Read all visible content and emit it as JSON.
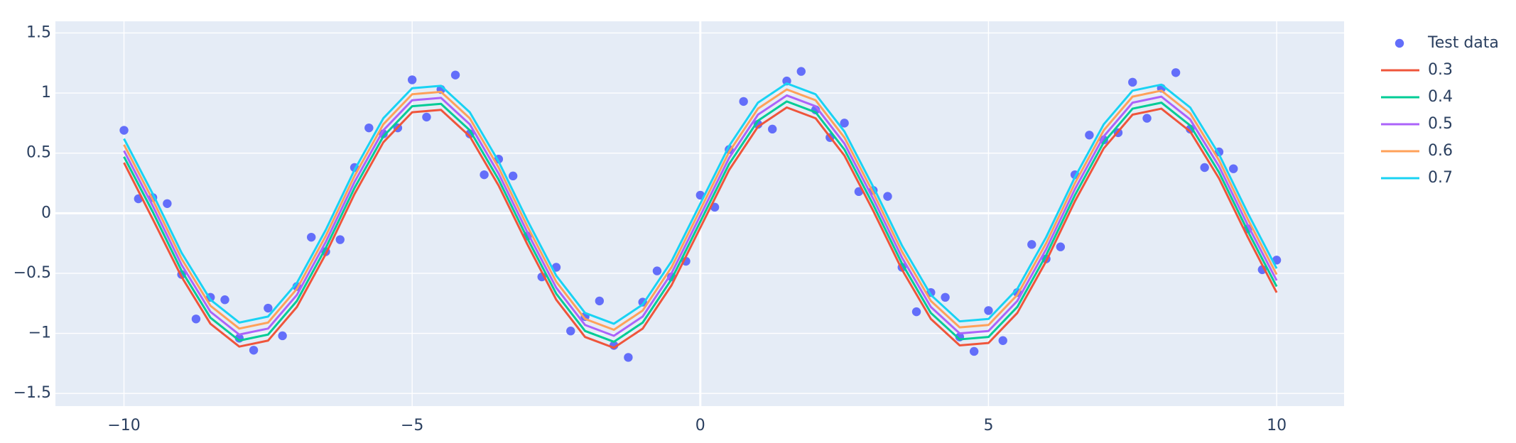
{
  "chart_data": {
    "type": "line",
    "xlim": [
      -11.19,
      11.17
    ],
    "ylim": [
      -1.605,
      1.597
    ],
    "xticks": [
      {
        "value": -10,
        "label": "−10"
      },
      {
        "value": -5,
        "label": "−5"
      },
      0,
      5,
      10
    ],
    "yticks": [
      1.5,
      1,
      0.5,
      0,
      {
        "value": -0.5,
        "label": "−0.5"
      },
      {
        "value": -1,
        "label": "−1"
      },
      {
        "value": -1.5,
        "label": "−1.5"
      }
    ],
    "grid": true,
    "legend": "right",
    "x": [
      -10,
      -9.5,
      -9,
      -8.5,
      -8,
      -7.5,
      -7,
      -6.5,
      -6,
      -5.5,
      -5,
      -4.5,
      -4,
      -3.5,
      -3,
      -2.5,
      -2,
      -1.5,
      -1,
      -0.5,
      0,
      0.5,
      1,
      1.5,
      2,
      2.5,
      3,
      3.5,
      4,
      4.5,
      5,
      5.5,
      6,
      6.5,
      7,
      7.5,
      8,
      8.5,
      9,
      9.5,
      10
    ],
    "series": [
      {
        "name": "Test data",
        "type": "scatter",
        "color": "#636efa",
        "x": [
          -10,
          -9.75,
          -9.5,
          -9.25,
          -9,
          -8.75,
          -8.5,
          -8.25,
          -8,
          -7.75,
          -7.5,
          -7.25,
          -7,
          -6.75,
          -6.5,
          -6.25,
          -6,
          -5.75,
          -5.5,
          -5.25,
          -5,
          -4.75,
          -4.5,
          -4.25,
          -4,
          -3.75,
          -3.5,
          -3.25,
          -3,
          -2.75,
          -2.5,
          -2.25,
          -2,
          -1.75,
          -1.5,
          -1.25,
          -1,
          -0.75,
          -0.5,
          -0.25,
          0,
          0.25,
          0.5,
          0.75,
          1,
          1.25,
          1.5,
          1.75,
          2,
          2.25,
          2.5,
          2.75,
          3,
          3.25,
          3.5,
          3.75,
          4,
          4.25,
          4.5,
          4.75,
          5,
          5.25,
          5.5,
          5.75,
          6,
          6.25,
          6.5,
          6.75,
          7,
          7.25,
          7.5,
          7.75,
          8,
          8.25,
          8.5,
          8.75,
          9,
          9.25,
          9.5,
          9.75,
          10
        ],
        "values": [
          0.69,
          0.12,
          0.13,
          0.08,
          -0.51,
          -0.88,
          -0.7,
          -0.72,
          -1.04,
          -1.14,
          -0.79,
          -1.02,
          -0.61,
          -0.2,
          -0.32,
          -0.22,
          0.38,
          0.71,
          0.66,
          0.71,
          1.11,
          0.8,
          1.03,
          1.15,
          0.66,
          0.32,
          0.45,
          0.31,
          -0.19,
          -0.53,
          -0.45,
          -0.98,
          -0.86,
          -0.73,
          -1.1,
          -1.2,
          -0.74,
          -0.48,
          -0.53,
          -0.4,
          0.15,
          0.05,
          0.53,
          0.93,
          0.74,
          0.7,
          1.1,
          1.18,
          0.86,
          0.63,
          0.75,
          0.18,
          0.19,
          0.14,
          -0.45,
          -0.82,
          -0.66,
          -0.7,
          -1.03,
          -1.15,
          -0.81,
          -1.06,
          -0.66,
          -0.26,
          -0.38,
          -0.28,
          0.32,
          0.65,
          0.61,
          0.67,
          1.09,
          0.79,
          1.04,
          1.17,
          0.7,
          0.38,
          0.51,
          0.37,
          -0.13,
          -0.47,
          -0.39
        ]
      },
      {
        "name": "0.3",
        "type": "line",
        "color": "#ef553b",
        "values": [
          0.42,
          -0.05,
          -0.53,
          -0.92,
          -1.11,
          -1.06,
          -0.78,
          -0.34,
          0.16,
          0.59,
          0.84,
          0.86,
          0.64,
          0.23,
          -0.26,
          -0.72,
          -1.03,
          -1.12,
          -0.96,
          -0.6,
          -0.12,
          0.36,
          0.72,
          0.88,
          0.79,
          0.48,
          0.02,
          -0.47,
          -0.88,
          -1.1,
          -1.08,
          -0.83,
          -0.4,
          0.1,
          0.54,
          0.82,
          0.87,
          0.68,
          0.29,
          -0.2,
          -0.66
        ]
      },
      {
        "name": "0.4",
        "type": "line",
        "color": "#00cc96",
        "values": [
          0.47,
          0.01,
          -0.48,
          -0.87,
          -1.06,
          -1.01,
          -0.73,
          -0.29,
          0.21,
          0.64,
          0.89,
          0.91,
          0.69,
          0.28,
          -0.21,
          -0.67,
          -0.98,
          -1.07,
          -0.91,
          -0.55,
          -0.07,
          0.41,
          0.77,
          0.93,
          0.84,
          0.53,
          0.07,
          -0.42,
          -0.83,
          -1.05,
          -1.03,
          -0.78,
          -0.35,
          0.15,
          0.59,
          0.87,
          0.92,
          0.73,
          0.34,
          -0.15,
          -0.61
        ]
      },
      {
        "name": "0.5",
        "type": "line",
        "color": "#ab63fa",
        "values": [
          0.52,
          0.06,
          -0.43,
          -0.82,
          -1.01,
          -0.96,
          -0.68,
          -0.24,
          0.26,
          0.69,
          0.94,
          0.96,
          0.74,
          0.33,
          -0.16,
          -0.62,
          -0.93,
          -1.02,
          -0.86,
          -0.5,
          -0.02,
          0.46,
          0.82,
          0.98,
          0.89,
          0.58,
          0.12,
          -0.37,
          -0.78,
          -1,
          -0.98,
          -0.73,
          -0.3,
          0.2,
          0.64,
          0.92,
          0.97,
          0.78,
          0.39,
          -0.1,
          -0.56
        ]
      },
      {
        "name": "0.6",
        "type": "line",
        "color": "#ffa15a",
        "values": [
          0.57,
          0.11,
          -0.38,
          -0.77,
          -0.96,
          -0.91,
          -0.63,
          -0.19,
          0.31,
          0.74,
          0.99,
          1.01,
          0.79,
          0.38,
          -0.11,
          -0.57,
          -0.88,
          -0.97,
          -0.81,
          -0.45,
          0.03,
          0.51,
          0.87,
          1.03,
          0.94,
          0.63,
          0.17,
          -0.32,
          -0.73,
          -0.95,
          -0.93,
          -0.68,
          -0.25,
          0.25,
          0.69,
          0.97,
          1.02,
          0.83,
          0.44,
          -0.05,
          -0.51
        ]
      },
      {
        "name": "0.7",
        "type": "line",
        "color": "#19d3f3",
        "values": [
          0.62,
          0.16,
          -0.33,
          -0.72,
          -0.91,
          -0.86,
          -0.58,
          -0.14,
          0.36,
          0.79,
          1.04,
          1.06,
          0.84,
          0.43,
          -0.06,
          -0.52,
          -0.83,
          -0.92,
          -0.76,
          -0.4,
          0.08,
          0.56,
          0.92,
          1.08,
          0.99,
          0.68,
          0.22,
          -0.27,
          -0.68,
          -0.9,
          -0.88,
          -0.63,
          -0.2,
          0.3,
          0.74,
          1.02,
          1.07,
          0.88,
          0.49,
          0,
          -0.46
        ]
      }
    ]
  }
}
